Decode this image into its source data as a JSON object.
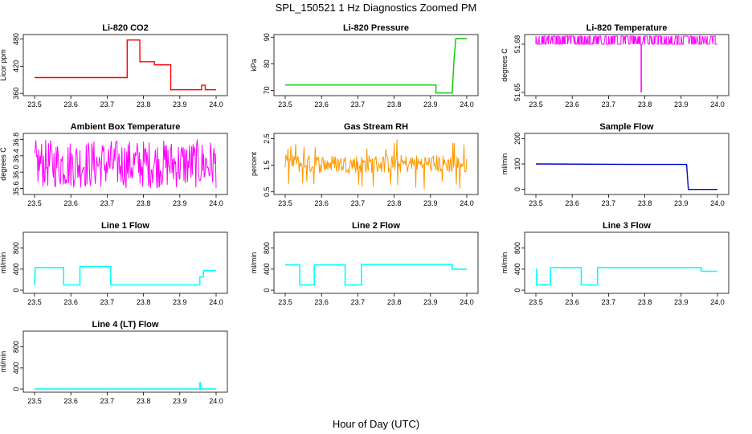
{
  "figure": {
    "title": "SPL_150521  1 Hz Diagnostics Zoomed PM",
    "xlabel": "Hour of Day (UTC)"
  },
  "colors": {
    "red": "#ff0000",
    "green": "#00cc00",
    "magenta": "#ff00ff",
    "orange": "#ff9900",
    "blue": "#0000cc",
    "cyan": "#00ffff"
  },
  "chart_data": [
    {
      "type": "line",
      "title": "Li-820 CO2",
      "ylabel": "Licor ppm",
      "color": "red",
      "xlim": [
        23.5,
        24.0
      ],
      "ylim": [
        355,
        490
      ],
      "xticks": [
        "23.5",
        "23.6",
        "23.7",
        "23.8",
        "23.9",
        "24.0"
      ],
      "yticks": [
        "360",
        "420",
        "480"
      ],
      "series": [
        {
          "x": [
            23.5,
            23.755,
            23.755,
            23.79,
            23.79,
            23.83,
            23.83,
            23.875,
            23.875,
            23.96,
            23.96,
            23.97,
            23.97,
            24.0
          ],
          "y": [
            395,
            395,
            478,
            478,
            430,
            430,
            423,
            423,
            368,
            368,
            378,
            378,
            368,
            368
          ]
        }
      ]
    },
    {
      "type": "line",
      "title": "Li-820 Pressure",
      "ylabel": "kPa",
      "color": "green",
      "xlim": [
        23.5,
        24.0
      ],
      "ylim": [
        68,
        91
      ],
      "xticks": [
        "23.5",
        "23.6",
        "23.7",
        "23.8",
        "23.9",
        "24.0"
      ],
      "yticks": [
        "70",
        "80",
        "90"
      ],
      "series": [
        {
          "x": [
            23.5,
            23.915,
            23.915,
            23.96,
            23.965,
            23.97,
            24.0
          ],
          "y": [
            72,
            72,
            69,
            69,
            82,
            89.5,
            89.5
          ]
        }
      ]
    },
    {
      "type": "line",
      "title": "Li-820 Temperature",
      "ylabel": "degrees C",
      "color": "magenta",
      "xlim": [
        23.5,
        24.0
      ],
      "ylim": [
        51.648,
        51.686
      ],
      "xticks": [
        "23.5",
        "23.6",
        "23.7",
        "23.8",
        "23.9",
        "24.0"
      ],
      "yticks": [
        "51.65",
        "51.68"
      ],
      "levels": [
        51.68,
        51.685
      ],
      "outlier": {
        "x": 23.79,
        "y": 51.65
      }
    },
    {
      "type": "line",
      "title": "Ambient Box Temperature",
      "ylabel": "degrees C",
      "color": "magenta",
      "xlim": [
        23.5,
        24.0
      ],
      "ylim": [
        35.45,
        36.95
      ],
      "xticks": [
        "23.5",
        "23.6",
        "23.7",
        "23.8",
        "23.9",
        "24.0"
      ],
      "yticks": [
        "35.6",
        "36.0",
        "36.4",
        "36.8"
      ],
      "band": {
        "low": 35.6,
        "high": 36.8
      }
    },
    {
      "type": "line",
      "title": "Gas Stream RH",
      "ylabel": "percent",
      "color": "orange",
      "xlim": [
        23.5,
        24.0
      ],
      "ylim": [
        0.4,
        2.7
      ],
      "xticks": [
        "23.5",
        "23.6",
        "23.7",
        "23.8",
        "23.9",
        "24.0"
      ],
      "yticks": [
        "0.5",
        "1.5",
        "2.5"
      ],
      "band": {
        "low": 1.2,
        "high": 1.9,
        "spike_high": 2.5,
        "spike_low": 0.6
      }
    },
    {
      "type": "line",
      "title": "Sample Flow",
      "ylabel": "ml/min",
      "color": "blue",
      "xlim": [
        23.5,
        24.0
      ],
      "ylim": [
        -20,
        220
      ],
      "xticks": [
        "23.5",
        "23.6",
        "23.7",
        "23.8",
        "23.9",
        "24.0"
      ],
      "yticks": [
        "0",
        "100",
        "200"
      ],
      "series": [
        {
          "x": [
            23.5,
            23.8,
            23.915,
            23.92,
            24.0
          ],
          "y": [
            100,
            98,
            98,
            0,
            0
          ]
        }
      ]
    },
    {
      "type": "line",
      "title": "Line 1 Flow",
      "ylabel": "ml/min",
      "color": "cyan",
      "xlim": [
        23.5,
        24.0
      ],
      "ylim": [
        -60,
        1100
      ],
      "xticks": [
        "23.5",
        "23.6",
        "23.7",
        "23.8",
        "23.9",
        "24.0"
      ],
      "yticks": [
        "0",
        "400",
        "800"
      ],
      "series": [
        {
          "x": [
            23.5,
            23.502,
            23.502,
            23.58,
            23.58,
            23.625,
            23.625,
            23.71,
            23.71,
            23.955,
            23.955,
            23.965,
            23.965,
            24.0
          ],
          "y": [
            100,
            430,
            430,
            430,
            100,
            100,
            450,
            450,
            100,
            100,
            250,
            250,
            370,
            370
          ]
        }
      ]
    },
    {
      "type": "line",
      "title": "Line 2 Flow",
      "ylabel": "ml/min",
      "color": "cyan",
      "xlim": [
        23.5,
        24.0
      ],
      "ylim": [
        -60,
        1100
      ],
      "xticks": [
        "23.5",
        "23.6",
        "23.7",
        "23.8",
        "23.9",
        "24.0"
      ],
      "yticks": [
        "0",
        "400",
        "800"
      ],
      "series": [
        {
          "x": [
            23.5,
            23.54,
            23.54,
            23.58,
            23.58,
            23.665,
            23.665,
            23.71,
            23.71,
            23.96,
            23.96,
            24.0
          ],
          "y": [
            480,
            480,
            100,
            100,
            480,
            480,
            100,
            100,
            490,
            490,
            400,
            400
          ]
        }
      ]
    },
    {
      "type": "line",
      "title": "Line 3 Flow",
      "ylabel": "ml/min",
      "color": "cyan",
      "xlim": [
        23.5,
        24.0
      ],
      "ylim": [
        -60,
        1100
      ],
      "xticks": [
        "23.5",
        "23.6",
        "23.7",
        "23.8",
        "23.9",
        "24.0"
      ],
      "yticks": [
        "0",
        "400",
        "800"
      ],
      "series": [
        {
          "x": [
            23.5,
            23.502,
            23.502,
            23.54,
            23.54,
            23.625,
            23.625,
            23.67,
            23.67,
            23.955,
            23.955,
            24.0
          ],
          "y": [
            400,
            400,
            100,
            100,
            430,
            430,
            100,
            100,
            430,
            430,
            360,
            360
          ]
        }
      ]
    },
    {
      "type": "line",
      "title": "Line 4 (LT) Flow",
      "ylabel": "ml/min",
      "color": "cyan",
      "xlim": [
        23.5,
        24.0
      ],
      "ylim": [
        -60,
        1100
      ],
      "xticks": [
        "23.5",
        "23.6",
        "23.7",
        "23.8",
        "23.9",
        "24.0"
      ],
      "yticks": [
        "0",
        "400",
        "800"
      ],
      "series": [
        {
          "x": [
            23.5,
            23.955,
            23.955,
            23.957,
            23.957,
            24.0
          ],
          "y": [
            0,
            0,
            120,
            120,
            0,
            0
          ]
        }
      ]
    }
  ]
}
